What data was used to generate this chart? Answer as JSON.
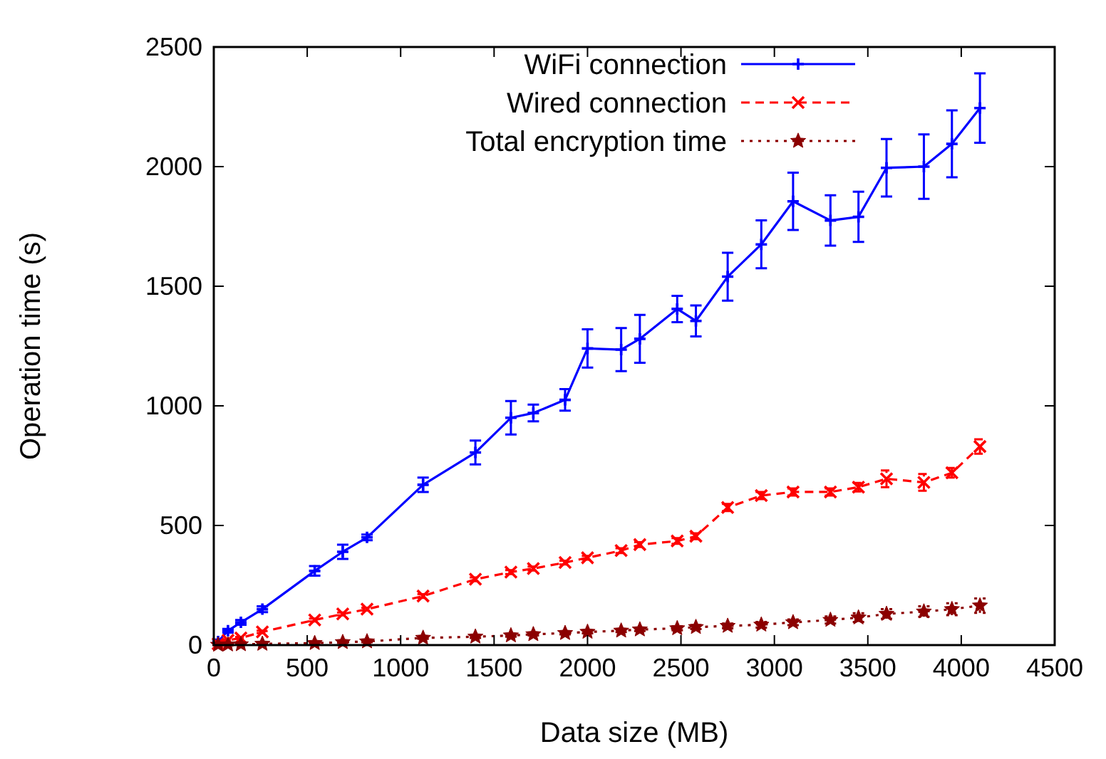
{
  "chart_data": {
    "type": "line",
    "xlabel": "Data size (MB)",
    "ylabel": "Operation time (s)",
    "xlim": [
      0,
      4500
    ],
    "ylim": [
      0,
      2500
    ],
    "xticks": [
      0,
      500,
      1000,
      1500,
      2000,
      2500,
      3000,
      3500,
      4000,
      4500
    ],
    "yticks": [
      0,
      500,
      1000,
      1500,
      2000,
      2500
    ],
    "grid": false,
    "legend": "top",
    "x": [
      23,
      76,
      145,
      260,
      540,
      690,
      820,
      1120,
      1400,
      1590,
      1710,
      1880,
      2000,
      2180,
      2280,
      2480,
      2580,
      2750,
      2930,
      3100,
      3300,
      3450,
      3600,
      3800,
      3950,
      4100
    ],
    "series": [
      {
        "name": "WiFi connection",
        "color": "#0000ff",
        "marker": "cross",
        "line_style": "solid",
        "values": [
          15,
          60,
          95,
          150,
          310,
          390,
          450,
          670,
          805,
          950,
          970,
          1025,
          1240,
          1235,
          1280,
          1405,
          1355,
          1540,
          1675,
          1855,
          1775,
          1790,
          1995,
          2000,
          2095,
          2245
        ],
        "errors": [
          8,
          8,
          10,
          12,
          20,
          30,
          12,
          30,
          50,
          70,
          35,
          45,
          80,
          90,
          100,
          55,
          65,
          100,
          100,
          120,
          105,
          105,
          120,
          135,
          140,
          145
        ]
      },
      {
        "name": "Wired connection",
        "color": "#ff0000",
        "marker": "x",
        "line_style": "dashed",
        "values": [
          5,
          20,
          30,
          55,
          105,
          130,
          150,
          205,
          275,
          305,
          320,
          345,
          365,
          395,
          420,
          435,
          455,
          575,
          625,
          640,
          640,
          660,
          695,
          680,
          720,
          830
        ],
        "errors": [
          3,
          3,
          4,
          5,
          6,
          6,
          6,
          8,
          8,
          8,
          8,
          8,
          8,
          10,
          10,
          12,
          12,
          15,
          15,
          15,
          15,
          18,
          35,
          35,
          20,
          30
        ]
      },
      {
        "name": "Total encryption time",
        "color": "#8b0000",
        "marker": "star",
        "line_style": "dotted",
        "values": [
          1,
          2,
          3,
          5,
          8,
          12,
          15,
          30,
          35,
          40,
          45,
          50,
          55,
          60,
          65,
          70,
          75,
          80,
          85,
          95,
          105,
          115,
          130,
          140,
          150,
          165
        ],
        "errors": [
          1,
          1,
          1,
          2,
          3,
          3,
          3,
          4,
          5,
          5,
          5,
          5,
          6,
          6,
          6,
          8,
          8,
          10,
          12,
          12,
          15,
          18,
          20,
          22,
          25,
          30
        ]
      }
    ]
  }
}
